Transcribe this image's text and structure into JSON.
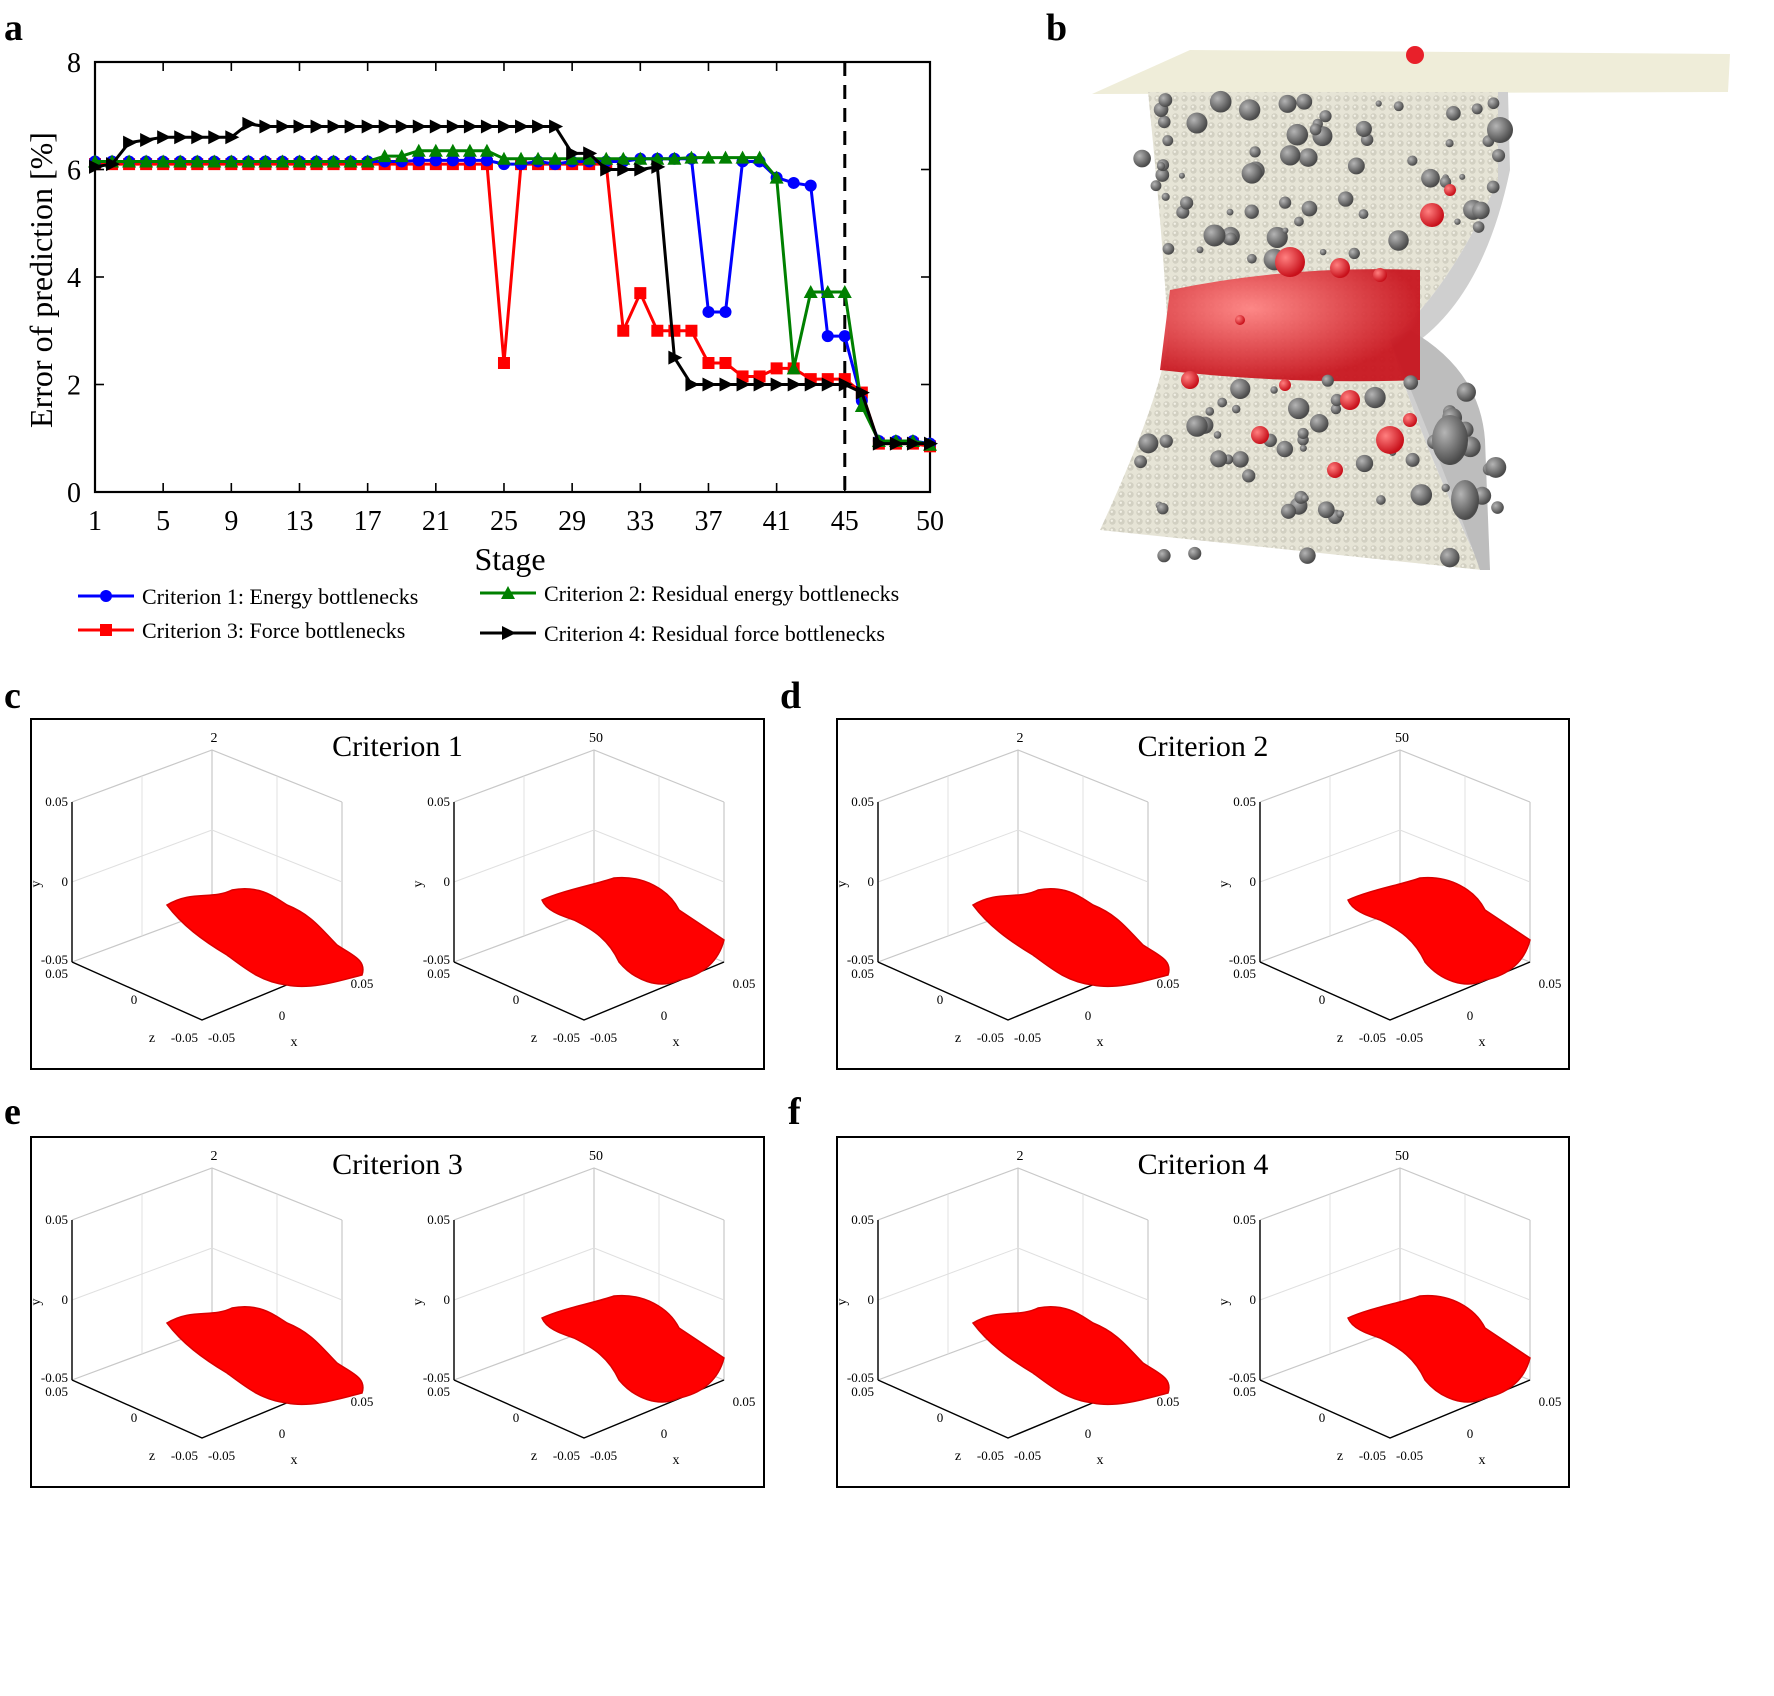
{
  "panels": {
    "a": "a",
    "b": "b",
    "c": "c",
    "d": "d",
    "e": "e",
    "f": "f"
  },
  "chart_data": {
    "type": "line",
    "xlabel": "Stage",
    "ylabel": "Error of prediction [%]",
    "xticks": [
      1,
      5,
      9,
      13,
      17,
      21,
      25,
      29,
      33,
      37,
      41,
      45,
      50
    ],
    "yticks": [
      0,
      2,
      4,
      6,
      8
    ],
    "xlim": [
      1,
      50
    ],
    "ylim": [
      0,
      8
    ],
    "vline_stage": 45,
    "series": [
      {
        "name": "Criterion 1: Energy bottlenecks",
        "color": "#0000ff",
        "marker": "circle",
        "x": [
          1,
          2,
          3,
          4,
          5,
          6,
          7,
          8,
          9,
          10,
          11,
          12,
          13,
          14,
          15,
          16,
          17,
          18,
          19,
          20,
          21,
          22,
          23,
          24,
          25,
          26,
          27,
          28,
          29,
          30,
          31,
          32,
          33,
          34,
          35,
          36,
          37,
          38,
          39,
          40,
          41,
          42,
          43,
          44,
          45,
          46,
          47,
          48,
          49,
          50
        ],
        "values": [
          6.15,
          6.15,
          6.15,
          6.15,
          6.15,
          6.15,
          6.15,
          6.15,
          6.15,
          6.15,
          6.15,
          6.15,
          6.15,
          6.15,
          6.15,
          6.15,
          6.15,
          6.15,
          6.15,
          6.17,
          6.17,
          6.17,
          6.17,
          6.17,
          6.1,
          6.1,
          6.15,
          6.1,
          6.15,
          6.15,
          6.15,
          6.15,
          6.2,
          6.2,
          6.2,
          6.2,
          3.35,
          3.35,
          6.15,
          6.15,
          5.85,
          5.75,
          5.7,
          2.9,
          2.9,
          1.7,
          0.95,
          0.95,
          0.95,
          0.9
        ]
      },
      {
        "name": "Criterion 2: Residual energy bottlenecks",
        "color": "#008000",
        "marker": "triangle",
        "x": [
          1,
          2,
          3,
          4,
          5,
          6,
          7,
          8,
          9,
          10,
          11,
          12,
          13,
          14,
          15,
          16,
          17,
          18,
          19,
          20,
          21,
          22,
          23,
          24,
          25,
          26,
          27,
          28,
          29,
          30,
          31,
          32,
          33,
          34,
          35,
          36,
          37,
          38,
          39,
          40,
          41,
          42,
          43,
          44,
          45,
          46,
          47,
          48,
          49,
          50
        ],
        "values": [
          6.15,
          6.15,
          6.15,
          6.15,
          6.15,
          6.15,
          6.15,
          6.15,
          6.15,
          6.15,
          6.15,
          6.15,
          6.15,
          6.15,
          6.15,
          6.15,
          6.15,
          6.25,
          6.25,
          6.35,
          6.35,
          6.35,
          6.35,
          6.35,
          6.2,
          6.2,
          6.2,
          6.2,
          6.2,
          6.2,
          6.2,
          6.2,
          6.2,
          6.2,
          6.2,
          6.22,
          6.22,
          6.22,
          6.22,
          6.22,
          5.85,
          2.3,
          3.72,
          3.72,
          3.72,
          1.6,
          0.95,
          0.95,
          0.95,
          0.88
        ]
      },
      {
        "name": "Criterion 3: Force bottlenecks",
        "color": "#ff0000",
        "marker": "square",
        "x": [
          1,
          2,
          3,
          4,
          5,
          6,
          7,
          8,
          9,
          10,
          11,
          12,
          13,
          14,
          15,
          16,
          17,
          18,
          19,
          20,
          21,
          22,
          23,
          24,
          25,
          26,
          27,
          28,
          29,
          30,
          31,
          32,
          33,
          34,
          35,
          36,
          37,
          38,
          39,
          40,
          41,
          42,
          43,
          44,
          45,
          46,
          47,
          48,
          49,
          50
        ],
        "values": [
          6.1,
          6.1,
          6.1,
          6.1,
          6.1,
          6.1,
          6.1,
          6.1,
          6.1,
          6.1,
          6.1,
          6.1,
          6.1,
          6.1,
          6.1,
          6.1,
          6.1,
          6.1,
          6.1,
          6.1,
          6.1,
          6.1,
          6.1,
          6.1,
          2.4,
          6.1,
          6.1,
          6.1,
          6.1,
          6.1,
          6.1,
          3.0,
          3.7,
          3.0,
          3.0,
          3.0,
          2.4,
          2.4,
          2.15,
          2.15,
          2.3,
          2.3,
          2.1,
          2.1,
          2.1,
          1.85,
          0.9,
          0.9,
          0.9,
          0.85
        ]
      },
      {
        "name": "Criterion 4: Residual force bottlenecks",
        "color": "#000000",
        "marker": "triangle-right",
        "x": [
          1,
          2,
          3,
          4,
          5,
          6,
          7,
          8,
          9,
          10,
          11,
          12,
          13,
          14,
          15,
          16,
          17,
          18,
          19,
          20,
          21,
          22,
          23,
          24,
          25,
          26,
          27,
          28,
          29,
          30,
          31,
          32,
          33,
          34,
          35,
          36,
          37,
          38,
          39,
          40,
          41,
          42,
          43,
          44,
          45,
          46,
          47,
          48,
          49,
          50
        ],
        "values": [
          6.05,
          6.1,
          6.5,
          6.55,
          6.6,
          6.6,
          6.6,
          6.6,
          6.6,
          6.85,
          6.8,
          6.8,
          6.8,
          6.8,
          6.8,
          6.8,
          6.8,
          6.8,
          6.8,
          6.8,
          6.8,
          6.8,
          6.8,
          6.8,
          6.8,
          6.8,
          6.8,
          6.8,
          6.3,
          6.3,
          6.0,
          6.0,
          6.0,
          6.05,
          2.5,
          2.0,
          2.0,
          2.0,
          2.0,
          2.0,
          2.0,
          2.0,
          2.0,
          2.0,
          2.0,
          1.85,
          0.9,
          0.9,
          0.9,
          0.9
        ]
      }
    ]
  },
  "subplots": [
    {
      "key": "c",
      "title": "Criterion 1",
      "left_stage": "2",
      "right_stage": "50"
    },
    {
      "key": "d",
      "title": "Criterion 2",
      "left_stage": "2",
      "right_stage": "50"
    },
    {
      "key": "e",
      "title": "Criterion 3",
      "left_stage": "2",
      "right_stage": "50"
    },
    {
      "key": "f",
      "title": "Criterion 4",
      "left_stage": "2",
      "right_stage": "50"
    }
  ],
  "mini_axes": {
    "y_top": "0.05",
    "y_mid": "0",
    "y_bot": "-0.05",
    "z_top": "0.05",
    "z_mid": "0",
    "z_bot": "-0.05",
    "x_left": "-0.05",
    "x_mid": "0",
    "x_right": "0.05",
    "label_x": "x",
    "label_y": "y",
    "label_z": "z"
  },
  "colors": {
    "surface": "#ff0000",
    "grey_ball": "#6e6e6e",
    "cream": "#e8e6d8",
    "fracture": "#e8202a"
  }
}
